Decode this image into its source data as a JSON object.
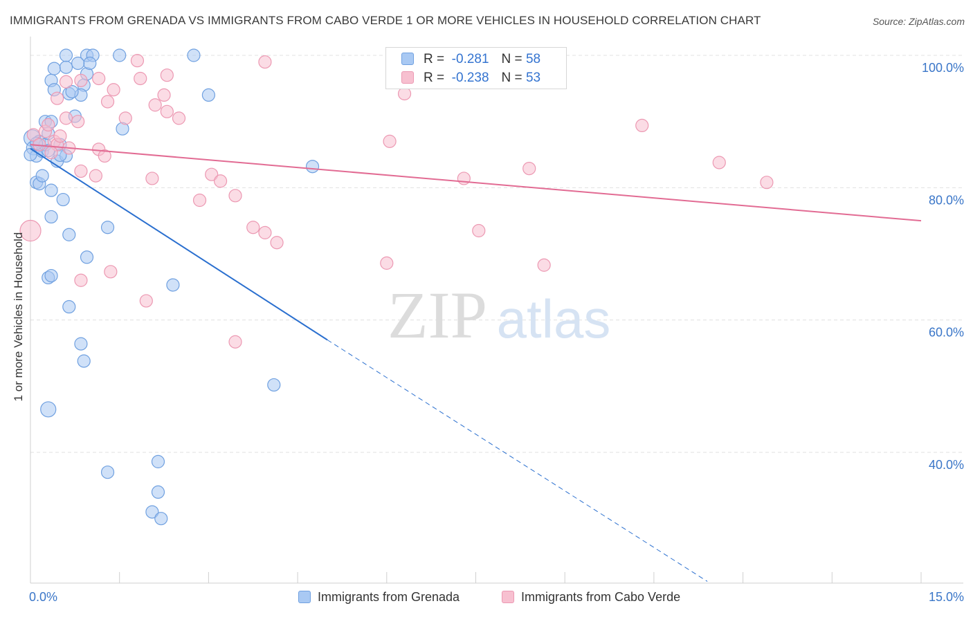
{
  "title": "IMMIGRANTS FROM GRENADA VS IMMIGRANTS FROM CABO VERDE 1 OR MORE VEHICLES IN HOUSEHOLD CORRELATION CHART",
  "source": "Source: ZipAtlas.com",
  "watermark": {
    "zip": "ZIP",
    "atlas": "atlas"
  },
  "legend": {
    "rows": [
      {
        "r_label": "R =",
        "r_value": "-0.281",
        "n_label": "N =",
        "n_value": "58"
      },
      {
        "r_label": "R =",
        "r_value": "-0.238",
        "n_label": "N =",
        "n_value": "53"
      }
    ]
  },
  "bottom_legend": [
    {
      "label": "Immigrants from Grenada"
    },
    {
      "label": "Immigrants from Cabo Verde"
    }
  ],
  "colors": {
    "grenada_fill": "#a9c9f3",
    "grenada_stroke": "#6fa0e0",
    "grenada_line": "#2a6fcf",
    "caboverde_fill": "#f7c0d0",
    "caboverde_stroke": "#ec98b2",
    "caboverde_line": "#e26b93",
    "axis_text": "#3a76c8",
    "grid": "#e0e0e0"
  },
  "chart_data": {
    "type": "scatter",
    "title": "IMMIGRANTS FROM GRENADA VS IMMIGRANTS FROM CABO VERDE 1 OR MORE VEHICLES IN HOUSEHOLD CORRELATION CHART",
    "xlabel": "",
    "ylabel": "1 or more Vehicles in Household",
    "xlim": [
      0,
      15
    ],
    "ylim": [
      20,
      102
    ],
    "x_tick_labels": [
      "0.0%",
      "15.0%"
    ],
    "y_ticks": [
      40,
      60,
      80,
      100
    ],
    "y_tick_labels": [
      "40.0%",
      "60.0%",
      "80.0%",
      "100.0%"
    ],
    "grid": true,
    "legend_position": "top-center",
    "series": [
      {
        "name": "Immigrants from Grenada",
        "r": -0.281,
        "n": 58,
        "trend": {
          "x": [
            0.0,
            5.0,
            11.4
          ],
          "y": [
            85.9,
            57.0,
            20.5
          ],
          "solid_until_x": 5.0
        },
        "points": [
          {
            "x": 0.03,
            "y": 87.5,
            "s": 12
          },
          {
            "x": 0.05,
            "y": 86.0,
            "s": 10
          },
          {
            "x": 0.1,
            "y": 84.8,
            "s": 9
          },
          {
            "x": 0.15,
            "y": 87.0,
            "s": 9
          },
          {
            "x": 0.2,
            "y": 85.5,
            "s": 9
          },
          {
            "x": 0.25,
            "y": 86.5,
            "s": 9
          },
          {
            "x": 0.3,
            "y": 88.2,
            "s": 9
          },
          {
            "x": 0.1,
            "y": 80.8,
            "s": 9
          },
          {
            "x": 0.15,
            "y": 80.6,
            "s": 9
          },
          {
            "x": 0.2,
            "y": 81.8,
            "s": 9
          },
          {
            "x": 0.35,
            "y": 79.6,
            "s": 9
          },
          {
            "x": 0.25,
            "y": 90.0,
            "s": 9
          },
          {
            "x": 0.35,
            "y": 90.0,
            "s": 9
          },
          {
            "x": 0.45,
            "y": 84.0,
            "s": 9
          },
          {
            "x": 0.5,
            "y": 86.5,
            "s": 9
          },
          {
            "x": 0.6,
            "y": 84.8,
            "s": 9
          },
          {
            "x": 0.75,
            "y": 90.8,
            "s": 9
          },
          {
            "x": 0.55,
            "y": 78.2,
            "s": 9
          },
          {
            "x": 0.35,
            "y": 96.2,
            "s": 9
          },
          {
            "x": 0.4,
            "y": 94.8,
            "s": 9
          },
          {
            "x": 0.65,
            "y": 94.2,
            "s": 9
          },
          {
            "x": 0.9,
            "y": 95.5,
            "s": 9
          },
          {
            "x": 0.4,
            "y": 98.0,
            "s": 9
          },
          {
            "x": 0.6,
            "y": 98.2,
            "s": 9
          },
          {
            "x": 0.95,
            "y": 97.2,
            "s": 9
          },
          {
            "x": 0.6,
            "y": 100.0,
            "s": 9
          },
          {
            "x": 0.95,
            "y": 100.0,
            "s": 9
          },
          {
            "x": 1.05,
            "y": 100.0,
            "s": 9
          },
          {
            "x": 1.5,
            "y": 100.0,
            "s": 9
          },
          {
            "x": 2.75,
            "y": 100.0,
            "s": 9
          },
          {
            "x": 1.0,
            "y": 98.8,
            "s": 9
          },
          {
            "x": 0.8,
            "y": 98.8,
            "s": 9
          },
          {
            "x": 0.85,
            "y": 94.0,
            "s": 9
          },
          {
            "x": 0.7,
            "y": 94.5,
            "s": 9
          },
          {
            "x": 1.55,
            "y": 88.9,
            "s": 9
          },
          {
            "x": 3.0,
            "y": 94.0,
            "s": 9
          },
          {
            "x": 0.35,
            "y": 75.6,
            "s": 9
          },
          {
            "x": 0.65,
            "y": 72.9,
            "s": 9
          },
          {
            "x": 0.95,
            "y": 69.5,
            "s": 9
          },
          {
            "x": 1.3,
            "y": 74.0,
            "s": 9
          },
          {
            "x": 0.3,
            "y": 66.4,
            "s": 9
          },
          {
            "x": 0.35,
            "y": 66.7,
            "s": 9
          },
          {
            "x": 0.65,
            "y": 62.0,
            "s": 9
          },
          {
            "x": 2.4,
            "y": 65.3,
            "s": 9
          },
          {
            "x": 0.85,
            "y": 56.4,
            "s": 9
          },
          {
            "x": 0.9,
            "y": 53.8,
            "s": 9
          },
          {
            "x": 0.3,
            "y": 46.5,
            "s": 11
          },
          {
            "x": 4.1,
            "y": 50.2,
            "s": 9
          },
          {
            "x": 1.3,
            "y": 37.0,
            "s": 9
          },
          {
            "x": 2.15,
            "y": 38.6,
            "s": 9
          },
          {
            "x": 2.15,
            "y": 34.0,
            "s": 9
          },
          {
            "x": 2.05,
            "y": 31.0,
            "s": 9
          },
          {
            "x": 2.2,
            "y": 30.0,
            "s": 9
          },
          {
            "x": 4.75,
            "y": 83.2,
            "s": 9
          },
          {
            "x": 0.0,
            "y": 85.0,
            "s": 9
          },
          {
            "x": 0.1,
            "y": 86.7,
            "s": 9
          },
          {
            "x": 0.5,
            "y": 84.9,
            "s": 9
          },
          {
            "x": 0.3,
            "y": 85.6,
            "s": 9
          }
        ]
      },
      {
        "name": "Immigrants from Cabo Verde",
        "r": -0.238,
        "n": 53,
        "trend": {
          "x": [
            0.0,
            15.0
          ],
          "y": [
            86.5,
            75.0
          ]
        },
        "points": [
          {
            "x": 0.0,
            "y": 73.5,
            "s": 15
          },
          {
            "x": 0.05,
            "y": 88.0,
            "s": 9
          },
          {
            "x": 0.15,
            "y": 86.5,
            "s": 9
          },
          {
            "x": 0.25,
            "y": 88.5,
            "s": 9
          },
          {
            "x": 0.3,
            "y": 89.5,
            "s": 9
          },
          {
            "x": 0.4,
            "y": 87.0,
            "s": 9
          },
          {
            "x": 0.45,
            "y": 86.5,
            "s": 9
          },
          {
            "x": 0.35,
            "y": 85.3,
            "s": 9
          },
          {
            "x": 0.5,
            "y": 87.8,
            "s": 9
          },
          {
            "x": 0.65,
            "y": 86.0,
            "s": 9
          },
          {
            "x": 0.6,
            "y": 90.5,
            "s": 9
          },
          {
            "x": 0.8,
            "y": 90.0,
            "s": 9
          },
          {
            "x": 0.45,
            "y": 93.5,
            "s": 9
          },
          {
            "x": 0.6,
            "y": 96.0,
            "s": 9
          },
          {
            "x": 0.85,
            "y": 96.2,
            "s": 9
          },
          {
            "x": 1.15,
            "y": 96.5,
            "s": 9
          },
          {
            "x": 1.3,
            "y": 93.0,
            "s": 9
          },
          {
            "x": 1.4,
            "y": 94.8,
            "s": 9
          },
          {
            "x": 1.6,
            "y": 90.5,
            "s": 9
          },
          {
            "x": 1.8,
            "y": 99.2,
            "s": 9
          },
          {
            "x": 1.85,
            "y": 96.5,
            "s": 9
          },
          {
            "x": 2.1,
            "y": 92.5,
            "s": 9
          },
          {
            "x": 2.3,
            "y": 97.0,
            "s": 9
          },
          {
            "x": 2.25,
            "y": 94.0,
            "s": 9
          },
          {
            "x": 2.3,
            "y": 91.5,
            "s": 9
          },
          {
            "x": 2.5,
            "y": 90.5,
            "s": 9
          },
          {
            "x": 3.95,
            "y": 99.0,
            "s": 9
          },
          {
            "x": 1.15,
            "y": 85.8,
            "s": 9
          },
          {
            "x": 1.25,
            "y": 84.8,
            "s": 9
          },
          {
            "x": 0.85,
            "y": 82.5,
            "s": 9
          },
          {
            "x": 1.1,
            "y": 81.8,
            "s": 9
          },
          {
            "x": 2.05,
            "y": 81.4,
            "s": 9
          },
          {
            "x": 2.85,
            "y": 78.1,
            "s": 9
          },
          {
            "x": 3.05,
            "y": 82.0,
            "s": 9
          },
          {
            "x": 3.2,
            "y": 81.0,
            "s": 9
          },
          {
            "x": 3.45,
            "y": 78.8,
            "s": 9
          },
          {
            "x": 3.75,
            "y": 74.0,
            "s": 9
          },
          {
            "x": 3.95,
            "y": 73.2,
            "s": 9
          },
          {
            "x": 4.15,
            "y": 71.7,
            "s": 9
          },
          {
            "x": 0.85,
            "y": 66.0,
            "s": 9
          },
          {
            "x": 1.35,
            "y": 67.3,
            "s": 9
          },
          {
            "x": 1.95,
            "y": 62.9,
            "s": 9
          },
          {
            "x": 3.45,
            "y": 56.7,
            "s": 9
          },
          {
            "x": 6.3,
            "y": 94.2,
            "s": 9
          },
          {
            "x": 6.05,
            "y": 87.0,
            "s": 9
          },
          {
            "x": 6.0,
            "y": 68.6,
            "s": 9
          },
          {
            "x": 7.3,
            "y": 81.4,
            "s": 9
          },
          {
            "x": 7.55,
            "y": 73.5,
            "s": 9
          },
          {
            "x": 8.4,
            "y": 82.9,
            "s": 9
          },
          {
            "x": 8.65,
            "y": 68.3,
            "s": 9
          },
          {
            "x": 10.3,
            "y": 89.4,
            "s": 9
          },
          {
            "x": 11.6,
            "y": 83.8,
            "s": 9
          },
          {
            "x": 12.4,
            "y": 80.8,
            "s": 9
          }
        ]
      }
    ]
  }
}
